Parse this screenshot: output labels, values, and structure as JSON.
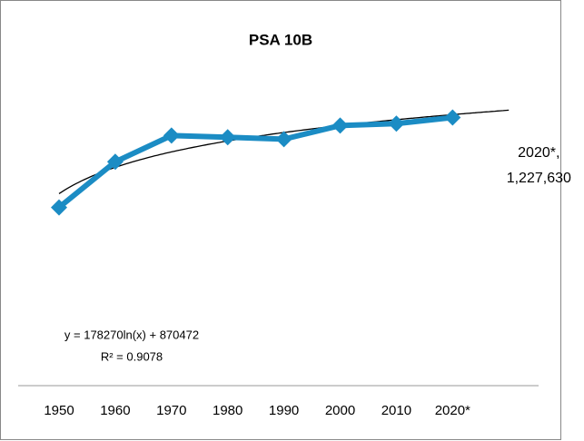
{
  "chart_data": {
    "type": "line",
    "title": "PSA 10B",
    "categories": [
      "1950",
      "1960",
      "1970",
      "1980",
      "1990",
      "2000",
      "2010",
      "2020*"
    ],
    "series": [
      {
        "name": "PSA 10B",
        "color": "#1b8cc4",
        "values": [
          806000,
          1020000,
          1143000,
          1135000,
          1126000,
          1190000,
          1199000,
          1227630
        ],
        "value_labels": [
          null,
          null,
          null,
          null,
          null,
          null,
          null,
          "2020*, 1,227,630"
        ]
      }
    ],
    "ylim": [
      0,
      1400000
    ],
    "trendline": {
      "equation": "y = 178270ln(x) + 870472",
      "r2_label": "R² = 0.9078"
    }
  }
}
